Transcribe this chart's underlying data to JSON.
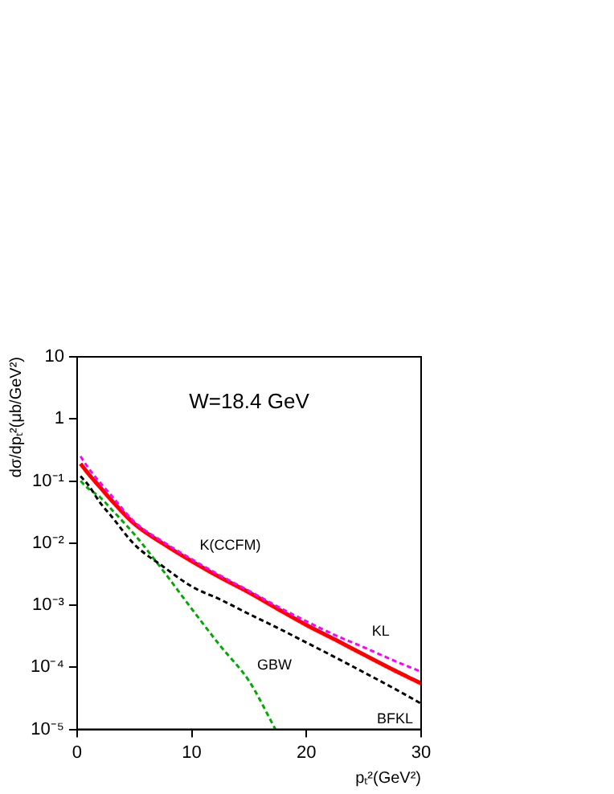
{
  "chart_data": {
    "type": "line",
    "title": "W=18.4 GeV",
    "xlabel": "pₜ²(GeV²)",
    "ylabel": "dσ/dpₜ²(μb/GeV²)",
    "x": [
      0.3,
      1,
      2,
      3,
      5,
      7.5,
      10,
      12.5,
      15,
      17.5,
      20,
      22.5,
      25,
      28,
      30
    ],
    "series": [
      {
        "color": "#ff00ff",
        "line_style": "dashed",
        "values": [
          0.25,
          0.16,
          0.095,
          0.058,
          0.022,
          0.0105,
          0.0055,
          0.003,
          0.0017,
          0.00095,
          0.00055,
          0.00033,
          0.00021,
          0.00012,
          8.5e-05
        ]
      },
      {
        "color": "#ff0000",
        "line_style": "solid",
        "values": [
          0.19,
          0.13,
          0.08,
          0.049,
          0.0204,
          0.0098,
          0.0051,
          0.0028,
          0.0016,
          0.00087,
          0.00048,
          0.00028,
          0.00016,
          8.3e-05,
          5.5e-05
        ]
      },
      {
        "color": "#000000",
        "line_style": "dashed",
        "values": [
          0.12,
          0.085,
          0.045,
          0.027,
          0.0095,
          0.0042,
          0.002,
          0.00123,
          0.00072,
          0.00043,
          0.00025,
          0.000145,
          8.3e-05,
          4.2e-05,
          2.6e-05
        ]
      },
      {
        "x": [
          0.3,
          1,
          2,
          3,
          5,
          7.5,
          10,
          12.5,
          15,
          17.3
        ],
        "color": "#00aa00",
        "line_style": "dashed",
        "values": [
          0.1,
          0.075,
          0.055,
          0.035,
          0.0138,
          0.0036,
          0.00087,
          0.00022,
          6e-05,
          1e-05
        ]
      }
    ],
    "annotations": [
      {
        "text": "K(CCFM)",
        "x": 10,
        "y": 0.0051
      },
      {
        "text": "KL",
        "x": 25,
        "y": 0.00021
      },
      {
        "text": "BFKL",
        "x": 30,
        "y": 2.6e-05
      },
      {
        "text": "GBW",
        "x": 15,
        "y": 6e-05
      }
    ],
    "log": "y",
    "legend": false,
    "marker": "none",
    "xlim": [
      0,
      30
    ],
    "xticks": [
      0,
      10,
      20,
      30
    ],
    "ylim": [
      1e-05,
      10
    ],
    "yticks": [
      {
        "value": 1e-05,
        "label": "10⁻⁵"
      },
      {
        "value": 0.0001,
        "label": "10⁻⁴"
      },
      {
        "value": 0.001,
        "label": "10⁻³"
      },
      {
        "value": 0.01,
        "label": "10⁻²"
      },
      {
        "value": 0.1,
        "label": "10⁻¹"
      },
      1,
      10
    ]
  }
}
